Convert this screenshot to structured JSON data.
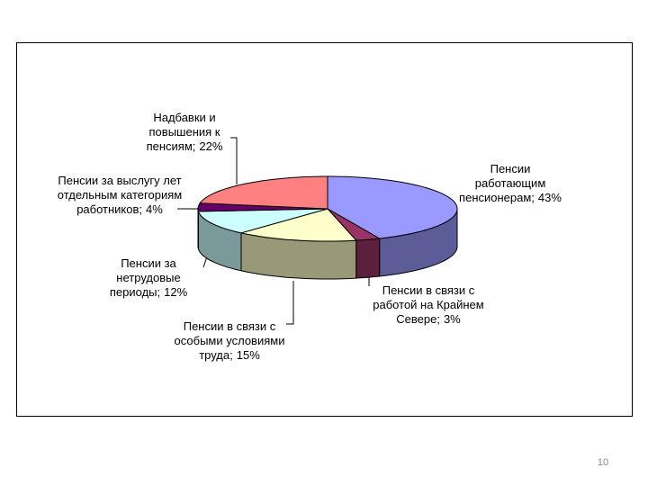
{
  "chart_data": {
    "type": "pie3d",
    "categories": [
      "Пенсии работающим пенсионерам;",
      "Пенсии в связи с работой на Крайнем Севере;",
      "Пенсии в связи с особыми условиями труда;",
      "Пенсии за нетрудовые периоды;",
      "Пенсии за выслугу лет отдельным категориям работников;",
      "Надбавки и повышения к пенсиям;"
    ],
    "values": [
      43,
      3,
      15,
      12,
      4,
      22
    ],
    "value_labels": [
      "43%",
      "3%",
      "15%",
      "12%",
      "4%",
      "22%"
    ],
    "colors": [
      "#9999ff",
      "#993366",
      "#ffffcc",
      "#ccffff",
      "#660066",
      "#ff8080"
    ]
  },
  "page_number": "10"
}
